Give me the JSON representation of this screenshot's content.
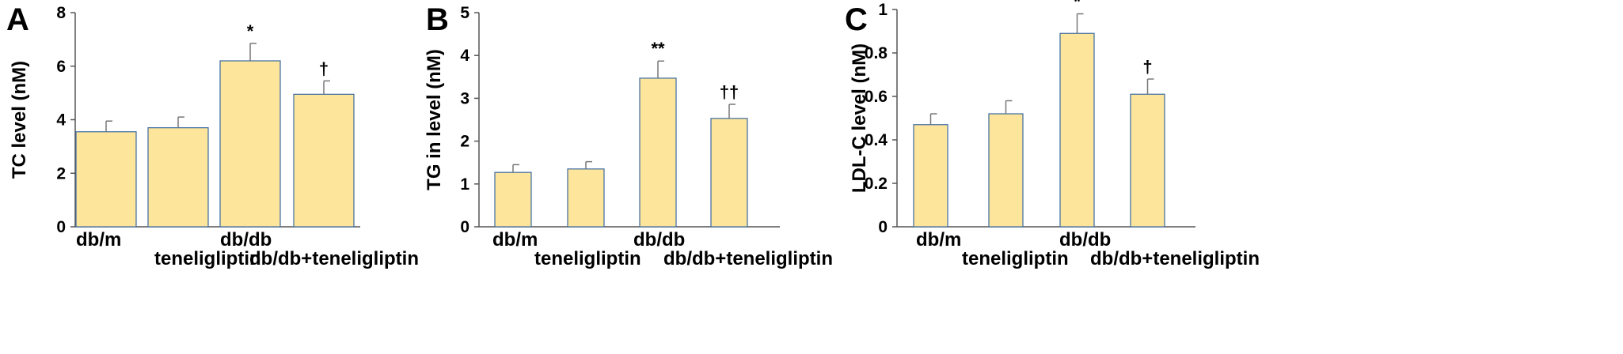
{
  "colors": {
    "bar_fill": "#fde59b",
    "bar_stroke": "#3b6aa0",
    "axis": "#555555",
    "error_bar": "#777777"
  },
  "chart_data": [
    {
      "type": "bar",
      "panel": "A",
      "ylabel": "TC level (nM)",
      "categories": [
        "db/m",
        "teneligliptin",
        "db/db",
        "db/db+teneligliptin"
      ],
      "values": [
        3.55,
        3.7,
        6.2,
        4.95
      ],
      "errors": [
        0.4,
        0.4,
        0.65,
        0.5
      ],
      "annotations": [
        "",
        "",
        "*",
        "†"
      ],
      "ylim": [
        0,
        8
      ],
      "yticks": [
        "0",
        "2",
        "4",
        "6",
        "8"
      ],
      "grid": false
    },
    {
      "type": "bar",
      "panel": "B",
      "ylabel": "TG in level  (nM)",
      "categories": [
        "db/m",
        "teneligliptin",
        "db/db",
        "db/db+teneligliptin"
      ],
      "values": [
        1.27,
        1.35,
        3.47,
        2.53
      ],
      "errors": [
        0.18,
        0.17,
        0.4,
        0.33
      ],
      "annotations": [
        "",
        "",
        "**",
        "††"
      ],
      "ylim": [
        0,
        5
      ],
      "yticks": [
        "0",
        "1",
        "2",
        "3",
        "4",
        "5"
      ],
      "grid": false
    },
    {
      "type": "bar",
      "panel": "C",
      "ylabel": "LDL-C level  (nM)",
      "categories": [
        "db/m",
        "teneligliptin",
        "db/db",
        "db/db+teneligliptin"
      ],
      "values": [
        0.47,
        0.52,
        0.89,
        0.61
      ],
      "errors": [
        0.05,
        0.06,
        0.09,
        0.07
      ],
      "annotations": [
        "",
        "",
        "*",
        "†"
      ],
      "ylim": [
        0,
        1
      ],
      "yticks": [
        "0",
        "0.2",
        "0.4",
        "0.6",
        "0.8",
        "1"
      ],
      "grid": false
    }
  ]
}
